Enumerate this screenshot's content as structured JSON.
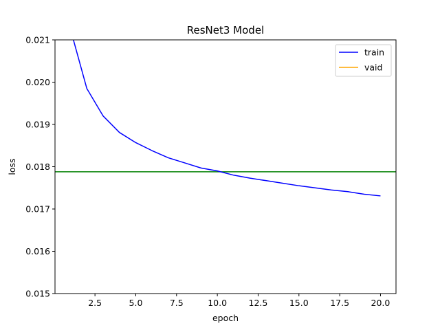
{
  "chart_data": {
    "type": "line",
    "title": "ResNet3 Model",
    "xlabel": "epoch",
    "ylabel": "loss",
    "xlim": [
      0.05,
      20.95
    ],
    "ylim": [
      0.015,
      0.021
    ],
    "xticks": [
      2.5,
      5.0,
      7.5,
      10.0,
      12.5,
      15.0,
      17.5,
      20.0
    ],
    "xtick_labels": [
      "2.5",
      "5.0",
      "7.5",
      "10.0",
      "12.5",
      "15.0",
      "17.5",
      "20.0"
    ],
    "yticks": [
      0.015,
      0.016,
      0.017,
      0.018,
      0.019,
      0.02,
      0.021
    ],
    "ytick_labels": [
      "0.015",
      "0.016",
      "0.017",
      "0.018",
      "0.019",
      "0.020",
      "0.021"
    ],
    "grid": false,
    "legend_position": "top-right",
    "series": [
      {
        "name": "train",
        "color": "#0000ff",
        "x": [
          1,
          2,
          3,
          4,
          5,
          6,
          7,
          8,
          9,
          10,
          11,
          12,
          13,
          14,
          15,
          16,
          17,
          18,
          19,
          20
        ],
        "y": [
          0.02125,
          0.01985,
          0.0192,
          0.01881,
          0.01857,
          0.01838,
          0.01821,
          0.01809,
          0.01797,
          0.0179,
          0.0178,
          0.01773,
          0.01767,
          0.01761,
          0.01755,
          0.0175,
          0.01745,
          0.01741,
          0.01735,
          0.01731
        ]
      },
      {
        "name": "vaid",
        "color": "#ffa500",
        "x": [],
        "y": []
      }
    ],
    "hlines": [
      {
        "y": 0.01788,
        "color": "#008000"
      }
    ]
  }
}
